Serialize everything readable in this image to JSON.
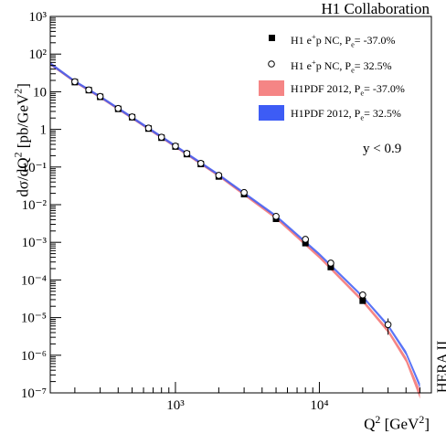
{
  "header": {
    "collaboration": "H1 Collaboration",
    "side_label": "HERA II"
  },
  "axes": {
    "ylabel_main": "dσ/dQ",
    "ylabel_sup1": "2",
    "ylabel_units": " [pb/GeV",
    "ylabel_sup2": "2",
    "ylabel_close": "]",
    "xlabel_main": "Q",
    "xlabel_sup1": "2",
    "xlabel_units": " [GeV",
    "xlabel_sup2": "2",
    "xlabel_close": "]"
  },
  "legend": [
    {
      "kind": "marker-filled",
      "prefix": "H1 e",
      "sup": "+",
      "mid": "p NC, P",
      "sub": "e",
      "suffix": "= -37.0%"
    },
    {
      "kind": "marker-open",
      "prefix": "H1 e",
      "sup": "+",
      "mid": "p NC, P",
      "sub": "e",
      "suffix": "= 32.5%"
    },
    {
      "kind": "band",
      "color": "#f58585",
      "prefix": "H1PDF 2012, P",
      "sub": "e",
      "suffix": "= -37.0%"
    },
    {
      "kind": "band",
      "color": "#3d5cf5",
      "prefix": "H1PDF 2012, P",
      "sub": "e",
      "suffix": "= 32.5%"
    }
  ],
  "annotation": "y < 0.9",
  "chart_data": {
    "type": "scatter",
    "xscale": "log",
    "yscale": "log",
    "xlim": [
      135,
      60000
    ],
    "ylim": [
      1e-07,
      1000
    ],
    "y_tick_labels": [
      "10⁻⁷",
      "10⁻⁶",
      "10⁻⁵",
      "10⁻⁴",
      "10⁻³",
      "10⁻²",
      "10⁻¹",
      "1",
      "10",
      "10²",
      "10³"
    ],
    "x_tick_labels": [
      "10³",
      "10⁴"
    ],
    "series": [
      {
        "name": "H1 e+p NC, Pe= -37.0%",
        "marker": "filled-square",
        "x": [
          200,
          250,
          300,
          400,
          500,
          650,
          800,
          1000,
          1200,
          1500,
          2000,
          3000,
          5000,
          8000,
          12000,
          20000
        ],
        "y": [
          18,
          11,
          7.3,
          3.5,
          2.1,
          1.05,
          0.6,
          0.35,
          0.22,
          0.12,
          0.056,
          0.019,
          0.0042,
          0.00095,
          0.00022,
          2.8e-05
        ]
      },
      {
        "name": "H1 e+p NC, Pe= 32.5%",
        "marker": "open-circle",
        "x": [
          200,
          250,
          300,
          400,
          500,
          650,
          800,
          1000,
          1200,
          1500,
          2000,
          3000,
          5000,
          8000,
          12000,
          20000,
          30000
        ],
        "y": [
          18.5,
          11.2,
          7.5,
          3.6,
          2.15,
          1.08,
          0.62,
          0.36,
          0.23,
          0.125,
          0.06,
          0.021,
          0.0049,
          0.0012,
          0.00028,
          4e-05,
          6.5e-06
        ],
        "yerr_low": [
          0,
          0,
          0,
          0,
          0,
          0,
          0,
          0,
          0,
          0,
          0,
          0,
          0,
          0,
          0,
          0,
          3e-06
        ],
        "yerr_high": [
          0,
          0,
          0,
          0,
          0,
          0,
          0,
          0,
          0,
          0,
          0,
          0,
          0,
          0,
          0,
          0,
          3e-06
        ]
      },
      {
        "name": "H1PDF 2012, Pe= -37.0%",
        "kind": "band",
        "color": "#f58585",
        "x": [
          135,
          200,
          300,
          500,
          1000,
          2000,
          5000,
          10000,
          20000,
          30000,
          40000,
          50000
        ],
        "y_low": [
          50,
          17,
          6.6,
          1.85,
          0.32,
          0.054,
          0.0041,
          0.00037,
          2.5e-05,
          3.9e-06,
          6.5e-07,
          7e-08
        ],
        "y_high": [
          60,
          20,
          7.8,
          2.2,
          0.38,
          0.064,
          0.0049,
          0.00045,
          3.1e-05,
          5e-06,
          9e-07,
          1.2e-07
        ]
      },
      {
        "name": "H1PDF 2012, Pe= 32.5%",
        "kind": "band",
        "color": "#3d5cf5",
        "x": [
          135,
          200,
          300,
          500,
          1000,
          2000,
          5000,
          10000,
          20000,
          30000,
          40000,
          50000
        ],
        "y_low": [
          51,
          17.5,
          6.8,
          1.9,
          0.33,
          0.057,
          0.0046,
          0.00044,
          3.3e-05,
          5.5e-06,
          1e-06,
          1.3e-07
        ],
        "y_high": [
          61,
          20.5,
          8.0,
          2.25,
          0.39,
          0.067,
          0.0054,
          0.00052,
          3.9e-05,
          6.8e-06,
          1.3e-06,
          1.8e-07
        ]
      }
    ]
  }
}
